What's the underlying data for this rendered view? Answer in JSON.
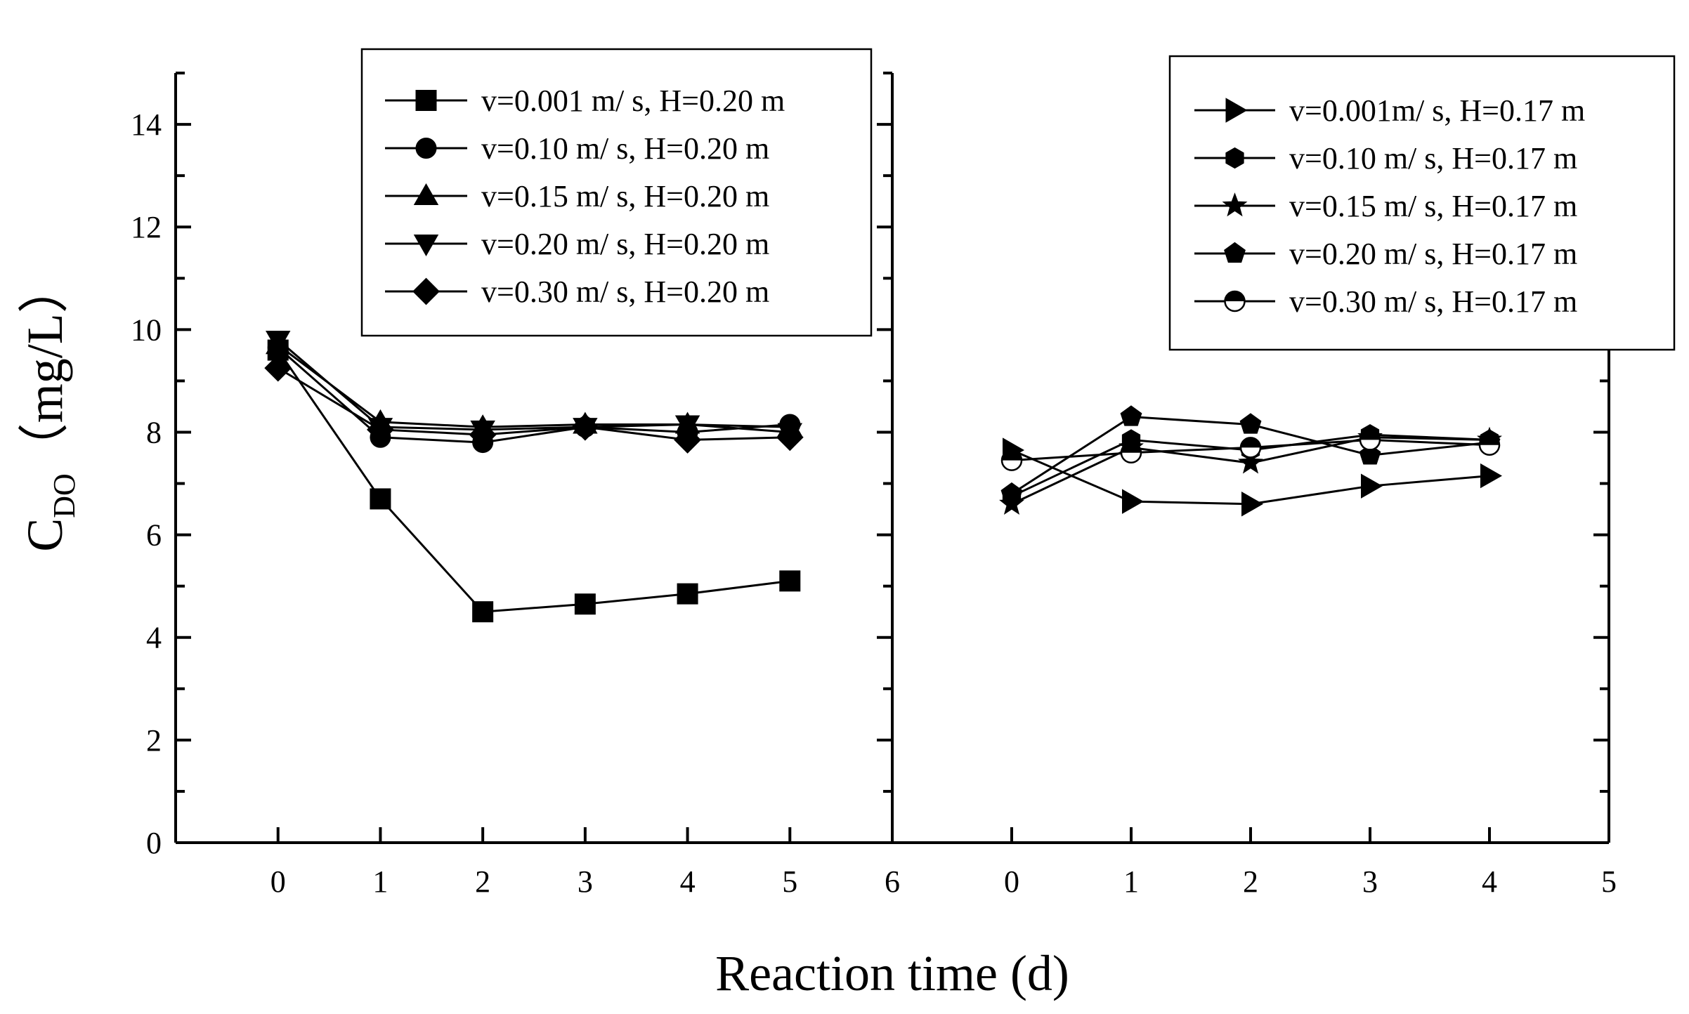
{
  "chart_data": [
    {
      "type": "line",
      "ylabel": "C_DO（mg/L）",
      "ylim": [
        0,
        15
      ],
      "yticks": [
        0,
        2,
        4,
        6,
        8,
        10,
        12,
        14
      ],
      "xlim": [
        -1,
        6
      ],
      "xticks": [
        0,
        1,
        2,
        3,
        4,
        5,
        6
      ],
      "legend_position": "top",
      "series": [
        {
          "name": "v=0.001 m/ s, H=0.20 m",
          "marker": "square",
          "x": [
            0,
            1,
            2,
            3,
            4,
            5
          ],
          "y": [
            9.6,
            6.7,
            4.5,
            4.65,
            4.85,
            5.1
          ]
        },
        {
          "name": "v=0.10 m/ s, H=0.20 m",
          "marker": "circle",
          "x": [
            0,
            1,
            2,
            3,
            4,
            5
          ],
          "y": [
            9.65,
            7.9,
            7.8,
            8.1,
            8.0,
            8.15
          ]
        },
        {
          "name": "v=0.15 m/ s, H=0.20 m",
          "marker": "triangle-up",
          "x": [
            0,
            1,
            2,
            3,
            4,
            5
          ],
          "y": [
            9.7,
            8.2,
            8.1,
            8.15,
            8.15,
            8.1
          ]
        },
        {
          "name": "v=0.20 m/ s, H=0.20 m",
          "marker": "triangle-down",
          "x": [
            0,
            1,
            2,
            3,
            4,
            5
          ],
          "y": [
            9.8,
            8.1,
            8.05,
            8.1,
            8.15,
            8.0
          ]
        },
        {
          "name": "v=0.30 m/ s, H=0.20 m",
          "marker": "diamond",
          "x": [
            0,
            1,
            2,
            3,
            4,
            5
          ],
          "y": [
            9.25,
            8.05,
            7.95,
            8.1,
            7.85,
            7.9
          ]
        }
      ]
    },
    {
      "type": "line",
      "xlabel": "Reaction time (d)",
      "ylim": [
        0,
        15
      ],
      "xlim": [
        -1,
        5
      ],
      "xticks": [
        0,
        1,
        2,
        3,
        4,
        5
      ],
      "legend_position": "top-right",
      "series": [
        {
          "name": "v=0.001m/ s, H=0.17 m",
          "marker": "triangle-right",
          "x": [
            0,
            1,
            2,
            3,
            4
          ],
          "y": [
            7.65,
            6.65,
            6.6,
            6.95,
            7.15
          ]
        },
        {
          "name": "v=0.10 m/ s, H=0.17 m",
          "marker": "hexagon",
          "x": [
            0,
            1,
            2,
            3,
            4
          ],
          "y": [
            6.75,
            7.85,
            7.65,
            7.95,
            7.85
          ]
        },
        {
          "name": "v=0.15 m/ s, H=0.17 m",
          "marker": "star",
          "x": [
            0,
            1,
            2,
            3,
            4
          ],
          "y": [
            6.6,
            7.7,
            7.4,
            7.9,
            7.85
          ]
        },
        {
          "name": "v=0.20 m/ s, H=0.17 m",
          "marker": "pentagon",
          "x": [
            0,
            1,
            2,
            3,
            4
          ],
          "y": [
            6.8,
            8.3,
            8.15,
            7.55,
            7.8
          ]
        },
        {
          "name": "v=0.30 m/ s, H=0.17 m",
          "marker": "half-circle",
          "x": [
            0,
            1,
            2,
            3,
            4
          ],
          "y": [
            7.45,
            7.6,
            7.7,
            7.85,
            7.75
          ]
        }
      ]
    }
  ]
}
